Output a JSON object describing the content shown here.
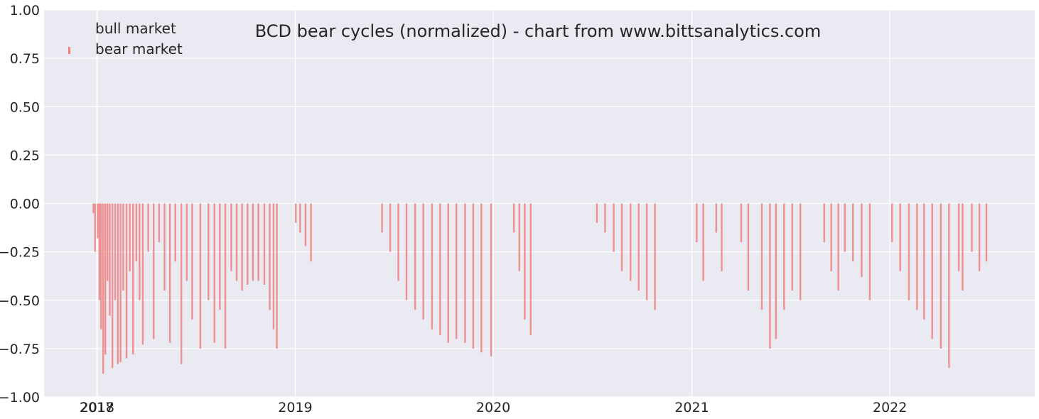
{
  "chart_data": {
    "type": "bar",
    "title": "BCD bear cycles (normalized)  - chart from www.bittsanalytics.com",
    "xlabel": "",
    "ylabel": "",
    "ylim": [
      -1.0,
      1.0
    ],
    "xlim": [
      "2017-09-25",
      "2022-09-25"
    ],
    "grid": true,
    "legend_position": "top-left",
    "y_ticks": [
      "1.00",
      "0.75",
      "0.50",
      "0.25",
      "0.00",
      "−0.25",
      "−0.50",
      "−0.75",
      "−1.00"
    ],
    "x_ticks": [
      {
        "date": "2017-12-31",
        "label": "2017"
      },
      {
        "date": "2018-01-01",
        "label": "2018"
      },
      {
        "date": "2019-01-01",
        "label": "2019"
      },
      {
        "date": "2020-01-01",
        "label": "2020"
      },
      {
        "date": "2021-01-01",
        "label": "2021"
      },
      {
        "date": "2022-01-01",
        "label": "2022"
      }
    ],
    "series": [
      {
        "name": "bull market",
        "color": "#ffffff",
        "values": []
      },
      {
        "name": "bear market",
        "color": "#f08080",
        "points": [
          [
            "2017-12-25",
            -0.05
          ],
          [
            "2017-12-28",
            -0.25
          ],
          [
            "2018-01-02",
            -0.18
          ],
          [
            "2018-01-05",
            -0.5
          ],
          [
            "2018-01-08",
            -0.65
          ],
          [
            "2018-01-12",
            -0.88
          ],
          [
            "2018-01-16",
            -0.78
          ],
          [
            "2018-01-20",
            -0.4
          ],
          [
            "2018-01-24",
            -0.58
          ],
          [
            "2018-01-29",
            -0.85
          ],
          [
            "2018-02-03",
            -0.5
          ],
          [
            "2018-02-08",
            -0.83
          ],
          [
            "2018-02-13",
            -0.82
          ],
          [
            "2018-02-18",
            -0.45
          ],
          [
            "2018-02-24",
            -0.8
          ],
          [
            "2018-03-02",
            -0.35
          ],
          [
            "2018-03-08",
            -0.78
          ],
          [
            "2018-03-14",
            -0.3
          ],
          [
            "2018-03-20",
            -0.5
          ],
          [
            "2018-03-26",
            -0.73
          ],
          [
            "2018-04-05",
            -0.25
          ],
          [
            "2018-04-15",
            -0.7
          ],
          [
            "2018-04-25",
            -0.2
          ],
          [
            "2018-05-05",
            -0.45
          ],
          [
            "2018-05-15",
            -0.72
          ],
          [
            "2018-05-25",
            -0.3
          ],
          [
            "2018-06-05",
            -0.83
          ],
          [
            "2018-06-15",
            -0.4
          ],
          [
            "2018-06-25",
            -0.6
          ],
          [
            "2018-07-10",
            -0.75
          ],
          [
            "2018-07-25",
            -0.5
          ],
          [
            "2018-08-05",
            -0.72
          ],
          [
            "2018-08-15",
            -0.55
          ],
          [
            "2018-08-25",
            -0.75
          ],
          [
            "2018-09-05",
            -0.35
          ],
          [
            "2018-09-15",
            -0.4
          ],
          [
            "2018-09-25",
            -0.45
          ],
          [
            "2018-10-05",
            -0.42
          ],
          [
            "2018-10-15",
            -0.4
          ],
          [
            "2018-10-25",
            -0.4
          ],
          [
            "2018-11-05",
            -0.42
          ],
          [
            "2018-11-15",
            -0.55
          ],
          [
            "2018-11-22",
            -0.65
          ],
          [
            "2018-11-28",
            -0.75
          ],
          [
            "2019-01-02",
            -0.1
          ],
          [
            "2019-01-10",
            -0.15
          ],
          [
            "2019-01-20",
            -0.22
          ],
          [
            "2019-01-30",
            -0.3
          ],
          [
            "2019-06-10",
            -0.15
          ],
          [
            "2019-06-25",
            -0.25
          ],
          [
            "2019-07-10",
            -0.4
          ],
          [
            "2019-07-25",
            -0.5
          ],
          [
            "2019-08-10",
            -0.55
          ],
          [
            "2019-08-25",
            -0.6
          ],
          [
            "2019-09-10",
            -0.65
          ],
          [
            "2019-09-25",
            -0.68
          ],
          [
            "2019-10-10",
            -0.72
          ],
          [
            "2019-10-25",
            -0.7
          ],
          [
            "2019-11-10",
            -0.72
          ],
          [
            "2019-11-25",
            -0.75
          ],
          [
            "2019-12-10",
            -0.77
          ],
          [
            "2019-12-28",
            -0.79
          ],
          [
            "2020-02-08",
            -0.15
          ],
          [
            "2020-02-18",
            -0.35
          ],
          [
            "2020-02-28",
            -0.6
          ],
          [
            "2020-03-10",
            -0.68
          ],
          [
            "2020-07-10",
            -0.1
          ],
          [
            "2020-07-25",
            -0.15
          ],
          [
            "2020-08-10",
            -0.25
          ],
          [
            "2020-08-25",
            -0.35
          ],
          [
            "2020-09-10",
            -0.4
          ],
          [
            "2020-09-25",
            -0.45
          ],
          [
            "2020-10-10",
            -0.5
          ],
          [
            "2020-10-25",
            -0.55
          ],
          [
            "2021-01-10",
            -0.2
          ],
          [
            "2021-01-22",
            -0.4
          ],
          [
            "2021-02-15",
            -0.15
          ],
          [
            "2021-02-25",
            -0.35
          ],
          [
            "2021-04-02",
            -0.2
          ],
          [
            "2021-04-15",
            -0.45
          ],
          [
            "2021-05-10",
            -0.55
          ],
          [
            "2021-05-25",
            -0.75
          ],
          [
            "2021-06-05",
            -0.7
          ],
          [
            "2021-06-20",
            -0.55
          ],
          [
            "2021-07-05",
            -0.45
          ],
          [
            "2021-07-20",
            -0.5
          ],
          [
            "2021-09-02",
            -0.2
          ],
          [
            "2021-09-15",
            -0.35
          ],
          [
            "2021-09-28",
            -0.45
          ],
          [
            "2021-10-10",
            -0.25
          ],
          [
            "2021-10-25",
            -0.3
          ],
          [
            "2021-11-10",
            -0.38
          ],
          [
            "2021-11-25",
            -0.5
          ],
          [
            "2022-01-05",
            -0.2
          ],
          [
            "2022-01-20",
            -0.35
          ],
          [
            "2022-02-05",
            -0.5
          ],
          [
            "2022-02-20",
            -0.55
          ],
          [
            "2022-03-05",
            -0.6
          ],
          [
            "2022-03-20",
            -0.7
          ],
          [
            "2022-04-05",
            -0.75
          ],
          [
            "2022-04-20",
            -0.85
          ],
          [
            "2022-05-08",
            -0.35
          ],
          [
            "2022-05-15",
            -0.45
          ],
          [
            "2022-06-01",
            -0.25
          ],
          [
            "2022-06-15",
            -0.35
          ],
          [
            "2022-06-28",
            -0.3
          ]
        ]
      }
    ]
  }
}
